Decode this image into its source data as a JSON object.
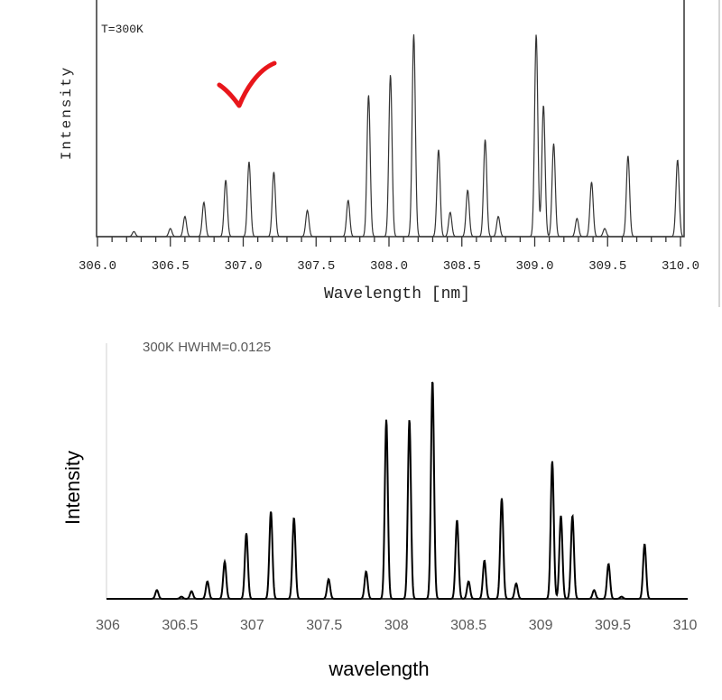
{
  "chart_data": [
    {
      "type": "line",
      "annotation": "T=300K",
      "xlabel": "Wavelength [nm]",
      "ylabel": "Intensity",
      "xlim": [
        306.0,
        310.0
      ],
      "ylim": [
        0,
        1
      ],
      "xticks": [
        "306.0",
        "306.5",
        "307.0",
        "307.5",
        "308.0",
        "308.5",
        "309.0",
        "309.5",
        "310.0"
      ],
      "grid": false,
      "mark": "red-checkmark",
      "colors": {
        "line": "#333333",
        "check": "#e8161b"
      },
      "peaks": {
        "x": [
          306.25,
          306.5,
          306.6,
          306.73,
          306.88,
          307.04,
          307.21,
          307.44,
          307.72,
          307.86,
          308.01,
          308.17,
          308.34,
          308.42,
          308.54,
          308.66,
          308.75,
          309.01,
          309.06,
          309.13,
          309.29,
          309.39,
          309.48,
          309.64,
          309.98
        ],
        "y": [
          0.025,
          0.04,
          0.1,
          0.17,
          0.28,
          0.37,
          0.32,
          0.13,
          0.18,
          0.7,
          0.8,
          1.0,
          0.43,
          0.12,
          0.23,
          0.48,
          0.1,
          1.0,
          0.65,
          0.46,
          0.09,
          0.27,
          0.04,
          0.4,
          0.38
        ]
      }
    },
    {
      "type": "line",
      "title": "300K HWHM=0.0125",
      "xlabel": "wavelength",
      "ylabel": "Intensity",
      "xlim": [
        306,
        310
      ],
      "ylim": [
        0,
        1
      ],
      "xticks": [
        "306",
        "306.5",
        "307",
        "307.5",
        "308",
        "308.5",
        "309",
        "309.5",
        "310"
      ],
      "grid": false,
      "colors": {
        "line": "#000000",
        "text": "#595959"
      },
      "peaks": {
        "x": [
          306.34,
          306.51,
          306.58,
          306.69,
          306.81,
          306.96,
          307.13,
          307.29,
          307.53,
          307.79,
          307.93,
          308.09,
          308.25,
          308.42,
          308.5,
          308.61,
          308.73,
          308.83,
          309.08,
          309.14,
          309.22,
          309.37,
          309.47,
          309.56,
          309.72
        ],
        "y": [
          0.04,
          0.01,
          0.035,
          0.08,
          0.17,
          0.3,
          0.4,
          0.37,
          0.09,
          0.125,
          0.82,
          0.82,
          1.0,
          0.36,
          0.08,
          0.175,
          0.46,
          0.07,
          0.63,
          0.38,
          0.38,
          0.04,
          0.16,
          0.01,
          0.25
        ]
      }
    }
  ]
}
